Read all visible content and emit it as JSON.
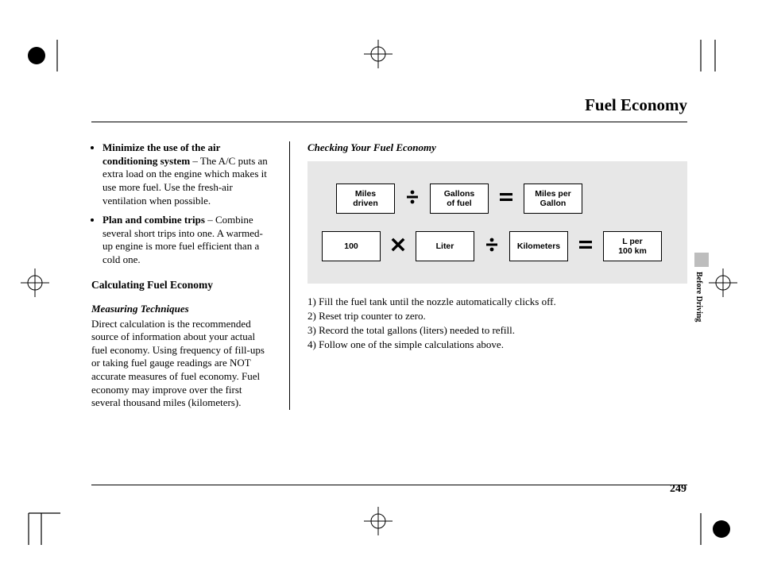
{
  "page": {
    "title": "Fuel Economy",
    "number": "249",
    "section_tab": "Before Driving",
    "rule_color": "#000000",
    "background": "#ffffff"
  },
  "left_column": {
    "bullets": [
      {
        "bold": "Minimize the use of the air conditioning system",
        "rest": " ‒ The A/C puts an extra load on the engine which makes it use more fuel. Use the fresh-air ventilation when possible."
      },
      {
        "bold": "Plan and combine trips",
        "rest": " ‒ Combine several short trips into one. A warmed-up engine is more fuel efficient than a cold one."
      }
    ],
    "calc_heading": "Calculating Fuel Economy",
    "measuring_heading": "Measuring Techniques",
    "measuring_body": "Direct calculation is the recommended source of information about your actual fuel economy. Using frequency of fill-ups or taking fuel gauge readings are NOT accurate measures of fuel economy. Fuel economy may improve over the first several thousand miles (kilometers)."
  },
  "right_column": {
    "checking_heading": "Checking Your Fuel Economy",
    "diagram": {
      "background": "#e7e7e7",
      "box_border": "#000000",
      "box_background": "#ffffff",
      "box_font_family": "Arial",
      "box_font_size_pt": 8,
      "op_font_size_pt": 16,
      "rows": [
        {
          "boxes": [
            "Miles\ndriven",
            "Gallons\nof fuel",
            "Miles per\nGallon"
          ],
          "ops": [
            "÷",
            "="
          ]
        },
        {
          "boxes": [
            "100",
            "Liter",
            "Kilometers",
            "L per\n100 km"
          ],
          "ops": [
            "×",
            "÷",
            "="
          ]
        }
      ]
    },
    "steps": [
      "1) Fill the fuel tank until the nozzle automatically clicks off.",
      "2) Reset trip counter to zero.",
      "3) Record the total gallons (liters) needed to refill.",
      "4) Follow one of the simple calculations above."
    ]
  },
  "crop_marks": {
    "color": "#000000",
    "target_fill": "#000000"
  }
}
